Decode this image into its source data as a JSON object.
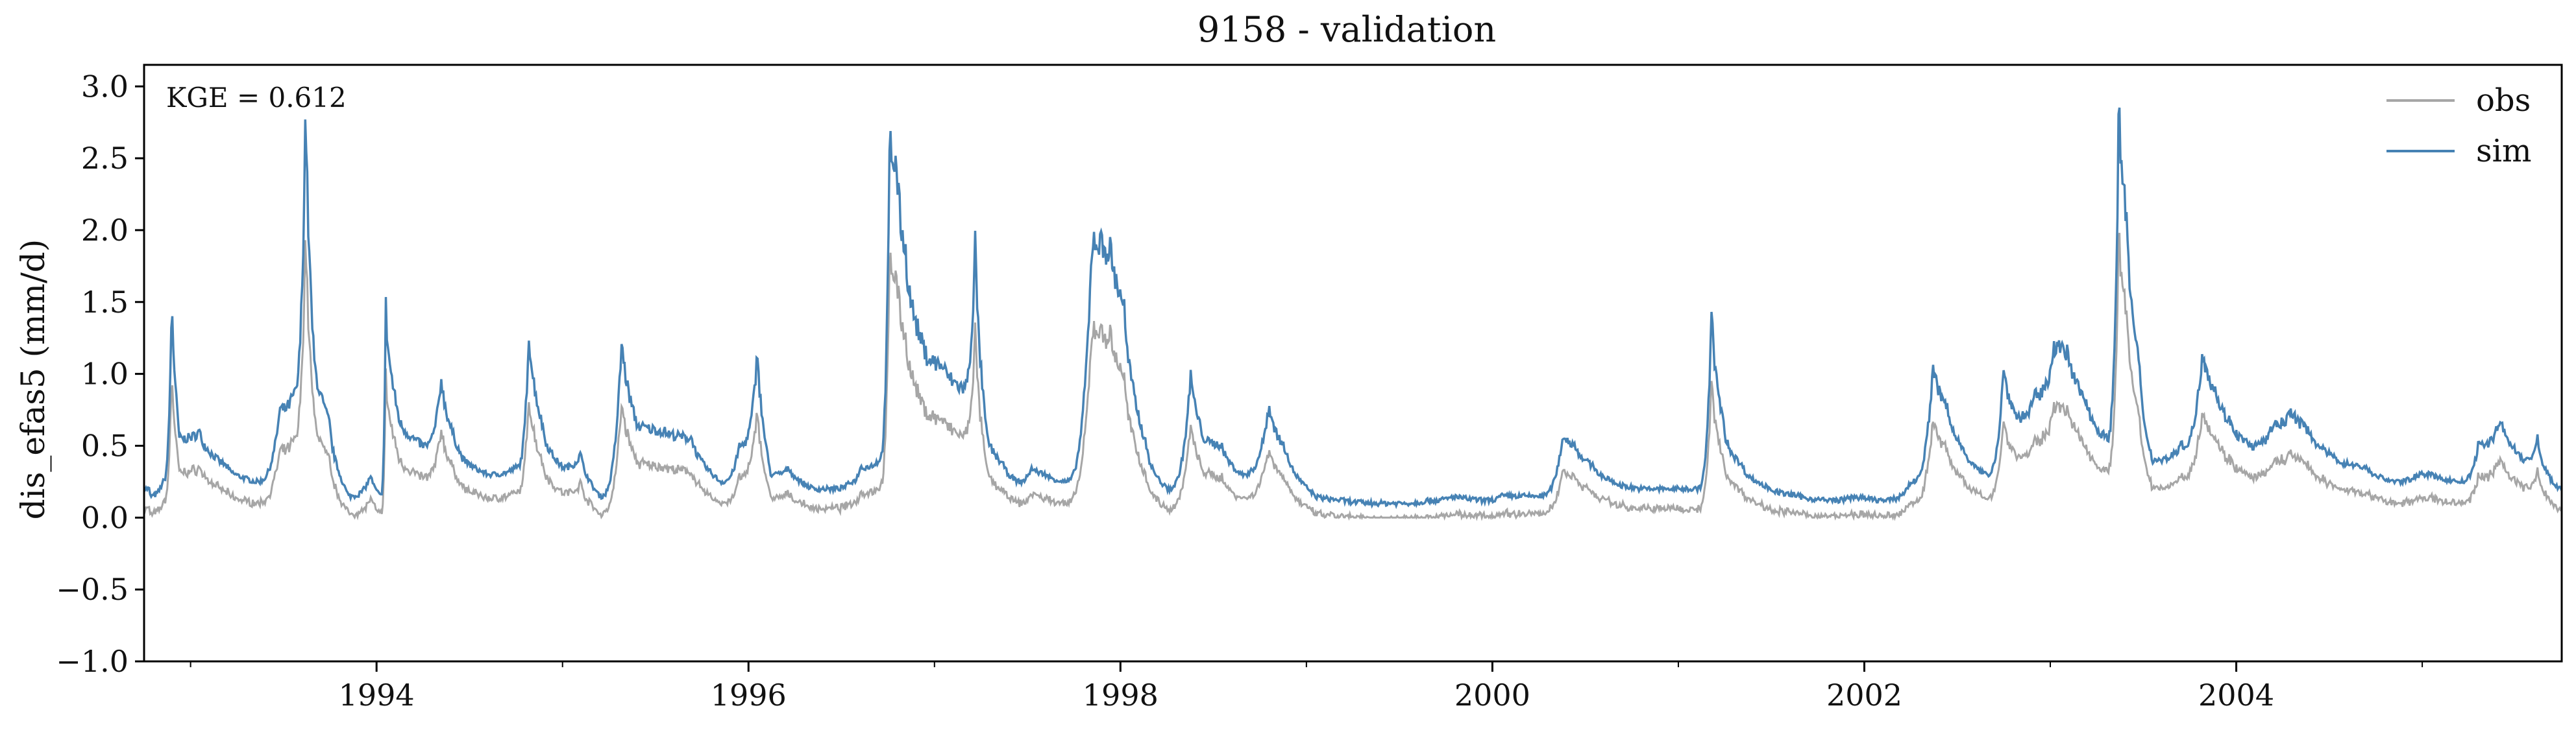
{
  "chart_data": {
    "type": "line",
    "title": "9158 - validation",
    "xlabel": "",
    "ylabel": "dis_efas5 (mm/d)",
    "annotation": "KGE = 0.612",
    "xlim": [
      1992.75,
      2005.75
    ],
    "ylim": [
      -1.0,
      3.15
    ],
    "x_ticks": [
      1994,
      1996,
      1998,
      2000,
      2002,
      2004
    ],
    "x_tick_labels": [
      "1994",
      "1996",
      "1998",
      "2000",
      "2002",
      "2004"
    ],
    "y_ticks": [
      -1.0,
      -0.5,
      0.0,
      0.5,
      1.0,
      1.5,
      2.0,
      2.5,
      3.0
    ],
    "y_tick_labels": [
      "−1.0",
      "−0.5",
      "0.0",
      "0.5",
      "1.0",
      "1.5",
      "2.0",
      "2.5",
      "3.0"
    ],
    "grid": false,
    "legend_position": "top-right",
    "colors": {
      "obs": "#a6a6a6",
      "sim": "#4682b4"
    },
    "series": [
      {
        "name": "obs",
        "color": "#a6a6a6"
      },
      {
        "name": "sim",
        "color": "#4682b4"
      }
    ],
    "sim_peaks": [
      [
        1992.78,
        0.15
      ],
      [
        1992.85,
        0.25
      ],
      [
        1992.9,
        1.6
      ],
      [
        1992.94,
        0.55
      ],
      [
        1993.05,
        0.6
      ],
      [
        1993.2,
        0.35
      ],
      [
        1993.35,
        0.25
      ],
      [
        1993.48,
        0.75
      ],
      [
        1993.55,
        0.85
      ],
      [
        1993.62,
        3.0
      ],
      [
        1993.66,
        1.2
      ],
      [
        1993.75,
        0.65
      ],
      [
        1993.85,
        0.15
      ],
      [
        1993.97,
        0.3
      ],
      [
        1994.02,
        0.15
      ],
      [
        1994.05,
        1.47
      ],
      [
        1994.12,
        0.7
      ],
      [
        1994.25,
        0.5
      ],
      [
        1994.35,
        1.0
      ],
      [
        1994.45,
        0.45
      ],
      [
        1994.6,
        0.3
      ],
      [
        1994.75,
        0.35
      ],
      [
        1994.82,
        1.33
      ],
      [
        1994.9,
        0.6
      ],
      [
        1995.0,
        0.35
      ],
      [
        1995.1,
        0.45
      ],
      [
        1995.2,
        0.15
      ],
      [
        1995.32,
        1.27
      ],
      [
        1995.4,
        0.65
      ],
      [
        1995.55,
        0.6
      ],
      [
        1995.7,
        0.55
      ],
      [
        1995.85,
        0.25
      ],
      [
        1995.95,
        0.5
      ],
      [
        1996.05,
        1.2
      ],
      [
        1996.12,
        0.3
      ],
      [
        1996.22,
        0.35
      ],
      [
        1996.35,
        0.2
      ],
      [
        1996.45,
        0.2
      ],
      [
        1996.55,
        0.25
      ],
      [
        1996.6,
        0.35
      ],
      [
        1996.7,
        0.4
      ],
      [
        1996.76,
        2.64
      ],
      [
        1996.8,
        2.42
      ],
      [
        1996.85,
        1.8
      ],
      [
        1996.95,
        1.15
      ],
      [
        1997.05,
        1.05
      ],
      [
        1997.15,
        0.9
      ],
      [
        1997.22,
        1.98
      ],
      [
        1997.28,
        0.6
      ],
      [
        1997.38,
        0.35
      ],
      [
        1997.45,
        0.25
      ],
      [
        1997.52,
        0.35
      ],
      [
        1997.6,
        0.3
      ],
      [
        1997.7,
        0.25
      ],
      [
        1997.85,
        1.98
      ],
      [
        1997.95,
        1.85
      ],
      [
        1998.02,
        1.5
      ],
      [
        1998.15,
        0.45
      ],
      [
        1998.25,
        0.2
      ],
      [
        1998.38,
        1.03
      ],
      [
        1998.45,
        0.55
      ],
      [
        1998.55,
        0.5
      ],
      [
        1998.65,
        0.3
      ],
      [
        1998.8,
        0.8
      ],
      [
        1998.9,
        0.45
      ],
      [
        1999.05,
        0.15
      ],
      [
        1999.2,
        0.12
      ],
      [
        1999.35,
        0.1
      ],
      [
        1999.5,
        0.1
      ],
      [
        1999.65,
        0.12
      ],
      [
        1999.8,
        0.15
      ],
      [
        1999.95,
        0.12
      ],
      [
        2000.05,
        0.15
      ],
      [
        2000.1,
        0.15
      ],
      [
        2000.25,
        0.15
      ],
      [
        2000.38,
        0.58
      ],
      [
        2000.45,
        0.5
      ],
      [
        2000.55,
        0.35
      ],
      [
        2000.65,
        0.25
      ],
      [
        2000.8,
        0.2
      ],
      [
        2000.95,
        0.2
      ],
      [
        2001.1,
        0.2
      ],
      [
        2001.18,
        1.46
      ],
      [
        2001.25,
        0.6
      ],
      [
        2001.35,
        0.35
      ],
      [
        2001.5,
        0.2
      ],
      [
        2001.65,
        0.15
      ],
      [
        2001.8,
        0.12
      ],
      [
        2001.95,
        0.15
      ],
      [
        2002.1,
        0.12
      ],
      [
        2002.25,
        0.25
      ],
      [
        2002.37,
        1.07
      ],
      [
        2002.45,
        0.75
      ],
      [
        2002.55,
        0.45
      ],
      [
        2002.65,
        0.3
      ],
      [
        2002.75,
        1.06
      ],
      [
        2002.82,
        0.7
      ],
      [
        2002.92,
        0.85
      ],
      [
        2003.02,
        1.22
      ],
      [
        2003.1,
        1.13
      ],
      [
        2003.2,
        0.8
      ],
      [
        2003.3,
        0.55
      ],
      [
        2003.37,
        3.0
      ],
      [
        2003.42,
        1.9
      ],
      [
        2003.48,
        1.05
      ],
      [
        2003.55,
        0.4
      ],
      [
        2003.7,
        0.5
      ],
      [
        2003.82,
        1.2
      ],
      [
        2003.9,
        0.85
      ],
      [
        2003.98,
        0.65
      ],
      [
        2004.08,
        0.5
      ],
      [
        2004.2,
        0.65
      ],
      [
        2004.3,
        0.75
      ],
      [
        2004.4,
        0.6
      ],
      [
        2004.55,
        0.4
      ],
      [
        2004.7,
        0.35
      ],
      [
        2004.85,
        0.25
      ],
      [
        2004.97,
        0.3
      ],
      [
        2005.05,
        0.3
      ],
      [
        2005.2,
        0.25
      ],
      [
        2005.3,
        0.5
      ],
      [
        2005.42,
        0.7
      ],
      [
        2005.55,
        0.4
      ],
      [
        2005.62,
        0.55
      ],
      [
        2005.7,
        0.25
      ],
      [
        2005.75,
        0.2
      ]
    ],
    "obs_scale": 0.72,
    "obs_offset": -0.08
  }
}
